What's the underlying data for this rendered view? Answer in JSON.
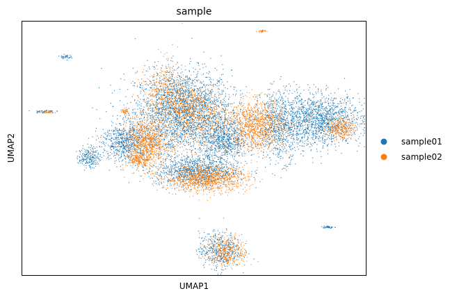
{
  "chart_data": {
    "type": "scatter",
    "title": "sample",
    "xlabel": "UMAP1",
    "ylabel": "UMAP2",
    "xticks": [],
    "yticks": [],
    "xlim": [
      0,
      100
    ],
    "ylim": [
      0,
      100
    ],
    "grid": false,
    "legend_position": "right",
    "series": [
      {
        "name": "sample01",
        "color": "#1f77b4",
        "clusters": [
          {
            "x": 46.8,
            "y": 64.6,
            "sx": 7.0,
            "sy": 8.0,
            "n": 2600
          },
          {
            "x": 58.8,
            "y": 53.0,
            "sx": 3.5,
            "sy": 4.0,
            "n": 700
          },
          {
            "x": 74.7,
            "y": 59.0,
            "sx": 3.0,
            "sy": 7.0,
            "n": 700
          },
          {
            "x": 86.5,
            "y": 61.0,
            "sx": 6.0,
            "sy": 5.0,
            "n": 1400
          },
          {
            "x": 30.0,
            "y": 52.5,
            "sx": 3.5,
            "sy": 4.0,
            "n": 700
          },
          {
            "x": 19.5,
            "y": 46.5,
            "sx": 1.5,
            "sy": 2.0,
            "n": 200
          },
          {
            "x": 51.0,
            "y": 41.0,
            "sx": 6.0,
            "sy": 3.0,
            "n": 1000
          },
          {
            "x": 57.5,
            "y": 10.0,
            "sx": 3.0,
            "sy": 3.5,
            "n": 450
          },
          {
            "x": 12.6,
            "y": 86.0,
            "sx": 0.8,
            "sy": 0.4,
            "n": 40
          },
          {
            "x": 6.5,
            "y": 64.5,
            "sx": 1.5,
            "sy": 0.3,
            "n": 50
          },
          {
            "x": 89.0,
            "y": 19.0,
            "sx": 0.8,
            "sy": 0.3,
            "n": 40
          },
          {
            "x": 43.0,
            "y": 51.0,
            "sx": 0.8,
            "sy": 0.8,
            "n": 30
          }
        ]
      },
      {
        "name": "sample02",
        "color": "#ff7f0e",
        "clusters": [
          {
            "x": 36.5,
            "y": 52.0,
            "sx": 3.0,
            "sy": 5.0,
            "n": 900
          },
          {
            "x": 34.0,
            "y": 45.5,
            "sx": 1.5,
            "sy": 1.0,
            "n": 150
          },
          {
            "x": 53.5,
            "y": 38.0,
            "sx": 6.0,
            "sy": 2.5,
            "n": 1000
          },
          {
            "x": 68.0,
            "y": 59.0,
            "sx": 4.0,
            "sy": 5.0,
            "n": 1000
          },
          {
            "x": 40.8,
            "y": 73.5,
            "sx": 3.0,
            "sy": 6.0,
            "n": 300
          },
          {
            "x": 92.5,
            "y": 58.0,
            "sx": 2.0,
            "sy": 2.0,
            "n": 300
          },
          {
            "x": 59.5,
            "y": 9.5,
            "sx": 3.0,
            "sy": 3.0,
            "n": 350
          },
          {
            "x": 30.0,
            "y": 64.5,
            "sx": 0.5,
            "sy": 0.6,
            "n": 40
          },
          {
            "x": 69.5,
            "y": 96.0,
            "sx": 0.6,
            "sy": 0.3,
            "n": 30
          },
          {
            "x": 52.0,
            "y": 62.0,
            "sx": 5.0,
            "sy": 6.0,
            "n": 500
          },
          {
            "x": 46.0,
            "y": 68.0,
            "sx": 4.0,
            "sy": 4.0,
            "n": 300
          },
          {
            "x": 6.8,
            "y": 64.2,
            "sx": 1.2,
            "sy": 0.3,
            "n": 25
          }
        ]
      }
    ]
  }
}
